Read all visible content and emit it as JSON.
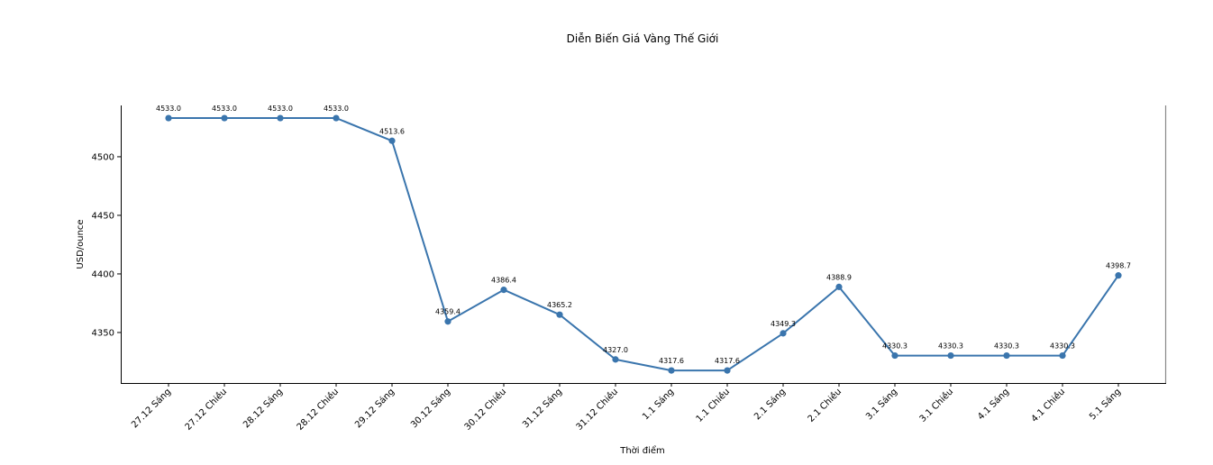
{
  "chart_data": {
    "type": "line",
    "title": "Diễn Biến Giá Vàng Thế Giới",
    "xlabel": "Thời điểm",
    "ylabel": "USD/ounce",
    "categories": [
      "27.12 Sáng",
      "27.12 Chiều",
      "28.12 Sáng",
      "28.12 Chiều",
      "29.12 Sáng",
      "30.12 Sáng",
      "30.12 Chiều",
      "31.12 Sáng",
      "31.12 Chiều",
      "1.1 Sáng",
      "1.1 Chiều",
      "2.1 Sáng",
      "2.1 Chiều",
      "3.1 Sáng",
      "3.1 Chiều",
      "4.1 Sáng",
      "4.1 Chiều",
      "5.1 Sáng"
    ],
    "series": [
      {
        "name": "USD/ounce",
        "color": "#3a75ad",
        "values": [
          4533.0,
          4533.0,
          4533.0,
          4533.0,
          4513.6,
          4359.4,
          4386.4,
          4365.2,
          4327.0,
          4317.6,
          4317.6,
          4349.3,
          4388.9,
          4330.3,
          4330.3,
          4330.3,
          4330.3,
          4398.7
        ],
        "labels": [
          "4533.0",
          "4533.0",
          "4533.0",
          "4533.0",
          "4513.6",
          "4359.4",
          "4386.4",
          "4365.2",
          "4327.0",
          "4317.6",
          "4317.6",
          "4349.3",
          "4388.9",
          "4330.3",
          "4330.3",
          "4330.3",
          "4330.3",
          "4398.7"
        ]
      }
    ],
    "yticks": [
      4350,
      4400,
      4450,
      4500
    ],
    "ytick_labels": [
      "4350",
      "4400",
      "4450",
      "4500"
    ],
    "ylim": [
      4306.9,
      4543.8
    ],
    "grid": false,
    "legend": null,
    "x_tick_rotation": 45,
    "spines": {
      "top": false,
      "right": true,
      "left": true,
      "bottom": true
    }
  }
}
